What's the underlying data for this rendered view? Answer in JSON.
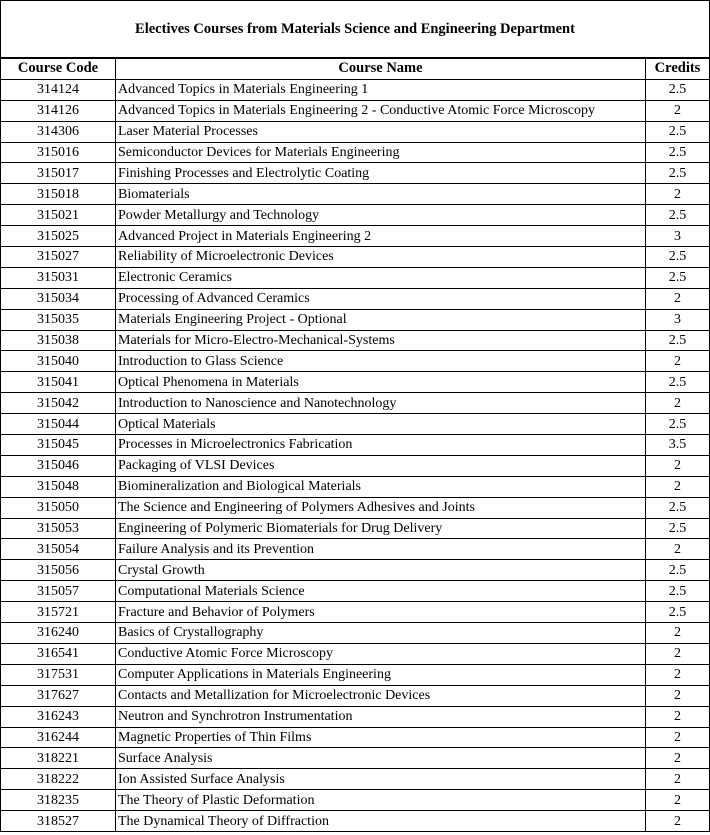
{
  "title": "Electives Courses from Materials Science and Engineering Department",
  "columns": {
    "code": "Course Code",
    "name": "Course Name",
    "credits": "Credits"
  },
  "rows": [
    {
      "code": "314124",
      "name": "Advanced Topics in Materials Engineering 1",
      "credits": "2.5"
    },
    {
      "code": "314126",
      "name": "Advanced Topics in Materials Engineering 2 - Conductive Atomic Force Microscopy",
      "credits": "2"
    },
    {
      "code": "314306",
      "name": "Laser Material Processes",
      "credits": "2.5"
    },
    {
      "code": "315016",
      "name": "Semiconductor Devices for Materials Engineering",
      "credits": "2.5"
    },
    {
      "code": "315017",
      "name": "Finishing Processes and Electrolytic Coating",
      "credits": "2.5"
    },
    {
      "code": "315018",
      "name": "Biomaterials",
      "credits": "2"
    },
    {
      "code": "315021",
      "name": "Powder Metallurgy and Technology",
      "credits": "2.5"
    },
    {
      "code": "315025",
      "name": "Advanced Project in Materials Engineering 2",
      "credits": "3"
    },
    {
      "code": "315027",
      "name": "Reliability of Microelectronic Devices",
      "credits": "2.5"
    },
    {
      "code": "315031",
      "name": "Electronic Ceramics",
      "credits": "2.5"
    },
    {
      "code": "315034",
      "name": "Processing of Advanced Ceramics",
      "credits": "2"
    },
    {
      "code": "315035",
      "name": "Materials Engineering Project - Optional",
      "credits": "3"
    },
    {
      "code": "315038",
      "name": "Materials for Micro-Electro-Mechanical-Systems",
      "credits": "2.5"
    },
    {
      "code": "315040",
      "name": "Introduction to Glass Science",
      "credits": "2"
    },
    {
      "code": "315041",
      "name": "Optical Phenomena in Materials",
      "credits": "2.5"
    },
    {
      "code": "315042",
      "name": "Introduction to Nanoscience and Nanotechnology",
      "credits": "2"
    },
    {
      "code": "315044",
      "name": "Optical Materials",
      "credits": "2.5"
    },
    {
      "code": "315045",
      "name": "Processes in Microelectronics Fabrication",
      "credits": "3.5"
    },
    {
      "code": "315046",
      "name": "Packaging of VLSI Devices",
      "credits": "2"
    },
    {
      "code": "315048",
      "name": "Biomineralization and Biological Materials",
      "credits": "2"
    },
    {
      "code": "315050",
      "name": "The Science and Engineering of Polymers Adhesives and Joints",
      "credits": "2.5"
    },
    {
      "code": "315053",
      "name": "Engineering of Polymeric Biomaterials for Drug Delivery",
      "credits": "2.5"
    },
    {
      "code": "315054",
      "name": "Failure Analysis and its Prevention",
      "credits": "2"
    },
    {
      "code": "315056",
      "name": "Crystal Growth",
      "credits": "2.5"
    },
    {
      "code": "315057",
      "name": "Computational Materials Science",
      "credits": "2.5"
    },
    {
      "code": "315721",
      "name": "Fracture and Behavior of Polymers",
      "credits": "2.5"
    },
    {
      "code": "316240",
      "name": "Basics of Crystallography",
      "credits": "2"
    },
    {
      "code": "316541",
      "name": "Conductive Atomic Force Microscopy",
      "credits": "2"
    },
    {
      "code": "317531",
      "name": "Computer Applications in Materials Engineering",
      "credits": "2"
    },
    {
      "code": "317627",
      "name": "Contacts and Metallization for Microelectronic Devices",
      "credits": "2"
    },
    {
      "code": "316243",
      "name": "Neutron and Synchrotron Instrumentation",
      "credits": "2"
    },
    {
      "code": "316244",
      "name": "Magnetic Properties of Thin Films",
      "credits": "2"
    },
    {
      "code": "318221",
      "name": "Surface Analysis",
      "credits": "2"
    },
    {
      "code": "318222",
      "name": "Ion Assisted Surface Analysis",
      "credits": "2"
    },
    {
      "code": "318235",
      "name": "The Theory of Plastic Deformation",
      "credits": "2"
    },
    {
      "code": "318527",
      "name": "The Dynamical Theory of Diffraction",
      "credits": "2"
    }
  ]
}
